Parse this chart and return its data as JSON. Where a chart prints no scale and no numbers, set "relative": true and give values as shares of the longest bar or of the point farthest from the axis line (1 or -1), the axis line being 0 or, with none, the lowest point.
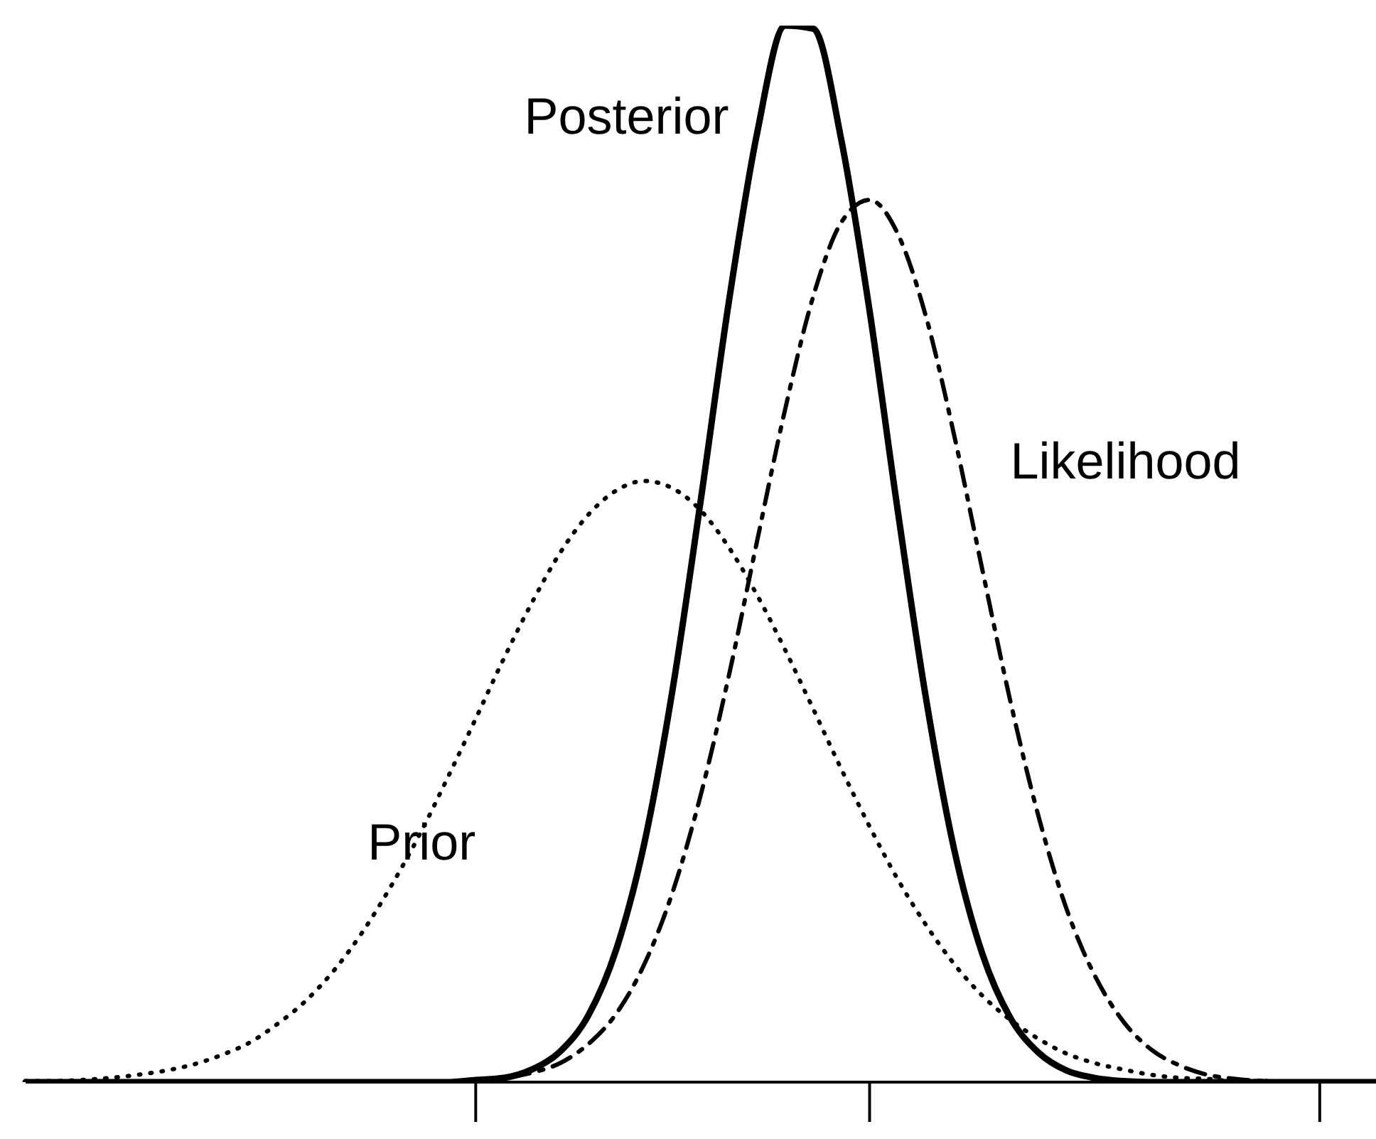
{
  "chart_data": {
    "type": "line",
    "relative": true,
    "marker": "none",
    "categories": [
      null,
      null,
      null,
      null,
      null,
      null,
      null,
      null,
      null,
      null,
      null,
      null,
      null,
      null,
      null,
      null,
      null,
      null,
      null,
      null,
      null,
      null,
      null,
      null,
      null,
      null,
      null,
      null,
      null,
      null,
      null,
      null,
      null,
      null,
      null,
      null,
      null,
      null,
      null,
      null,
      null,
      null,
      null,
      null,
      null,
      null,
      null,
      null,
      null
    ],
    "series": [
      {
        "name": "Posterior",
        "color": "#000000",
        "line_style": "solid",
        "values": [
          0,
          0,
          0,
          0,
          0,
          0,
          0,
          0,
          0,
          0,
          0,
          0,
          0,
          0,
          0,
          0,
          0.002,
          0.004,
          0.012,
          0.029,
          0.063,
          0.126,
          0.227,
          0.372,
          0.551,
          0.739,
          0.898,
          1,
          0.997,
          0.891,
          0.73,
          0.541,
          0.364,
          0.221,
          0.122,
          0.061,
          0.028,
          0.011,
          0.004,
          0.001,
          0,
          0,
          0,
          0,
          0,
          0,
          0,
          0,
          0
        ]
      },
      {
        "name": "Likelihood",
        "color": "#000000",
        "line_style": "dashed",
        "values": [
          0,
          0,
          0,
          0,
          0,
          0,
          0,
          0,
          0,
          0,
          0,
          0,
          0,
          0,
          0,
          0,
          0.001,
          0.004,
          0.009,
          0.018,
          0.036,
          0.065,
          0.112,
          0.18,
          0.272,
          0.385,
          0.512,
          0.637,
          0.744,
          0.814,
          0.835,
          0.803,
          0.725,
          0.613,
          0.486,
          0.361,
          0.252,
          0.164,
          0.101,
          0.058,
          0.031,
          0.016,
          0.007,
          0.003,
          0.001,
          0,
          0,
          0,
          0
        ]
      },
      {
        "name": "Prior",
        "color": "#000000",
        "line_style": "dotted",
        "values": [
          0.001,
          0.001,
          0.002,
          0.004,
          0.007,
          0.011,
          0.017,
          0.026,
          0.038,
          0.056,
          0.078,
          0.107,
          0.143,
          0.186,
          0.234,
          0.288,
          0.344,
          0.401,
          0.454,
          0.501,
          0.537,
          0.56,
          0.569,
          0.562,
          0.541,
          0.506,
          0.461,
          0.409,
          0.353,
          0.296,
          0.242,
          0.192,
          0.149,
          0.112,
          0.082,
          0.059,
          0.041,
          0.027,
          0.018,
          0.012,
          0.007,
          0.004,
          0.003,
          0.001,
          0.001,
          0,
          0,
          0,
          0
        ]
      }
    ]
  }
}
